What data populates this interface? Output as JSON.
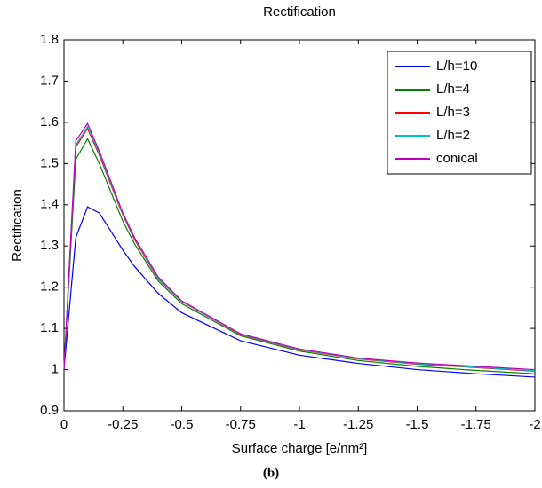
{
  "chart_data": {
    "type": "line",
    "title": "Rectification",
    "xlabel": "Surface charge [e/nm²]",
    "ylabel": "Rectification",
    "caption": "(b)",
    "x": [
      0,
      -0.05,
      -0.1,
      -0.15,
      -0.25,
      -0.3,
      -0.4,
      -0.5,
      -0.75,
      -1,
      -1.25,
      -1.5,
      -1.75,
      -2
    ],
    "series": [
      {
        "name": "L/h=10",
        "color": "#0000ff",
        "values": [
          1.0,
          1.32,
          1.395,
          1.38,
          1.29,
          1.25,
          1.185,
          1.138,
          1.07,
          1.035,
          1.015,
          1.0,
          0.99,
          0.982
        ]
      },
      {
        "name": "L/h=4",
        "color": "#008000",
        "values": [
          1.0,
          1.51,
          1.56,
          1.5,
          1.36,
          1.305,
          1.215,
          1.16,
          1.082,
          1.045,
          1.022,
          1.008,
          0.998,
          0.99
        ]
      },
      {
        "name": "L/h=3",
        "color": "#ff0000",
        "values": [
          1.0,
          1.54,
          1.585,
          1.52,
          1.375,
          1.315,
          1.22,
          1.165,
          1.085,
          1.048,
          1.026,
          1.013,
          1.005,
          0.996
        ]
      },
      {
        "name": "L/h=2",
        "color": "#00bfbf",
        "values": [
          1.0,
          1.545,
          1.59,
          1.525,
          1.378,
          1.318,
          1.222,
          1.166,
          1.086,
          1.049,
          1.027,
          1.014,
          1.006,
          0.997
        ]
      },
      {
        "name": "conical",
        "color": "#bf00bf",
        "values": [
          1.0,
          1.555,
          1.597,
          1.53,
          1.38,
          1.32,
          1.225,
          1.167,
          1.087,
          1.05,
          1.028,
          1.016,
          1.008,
          1.0
        ]
      }
    ],
    "xlim": [
      0,
      -2
    ],
    "xticks": [
      0,
      -0.25,
      -0.5,
      -0.75,
      -1,
      -1.25,
      -1.5,
      -1.75,
      -2
    ],
    "ylim": [
      0.9,
      1.8
    ],
    "yticks": [
      0.9,
      1,
      1.1,
      1.2,
      1.3,
      1.4,
      1.5,
      1.6,
      1.7,
      1.8
    ],
    "grid": false,
    "legend": "top-right"
  }
}
